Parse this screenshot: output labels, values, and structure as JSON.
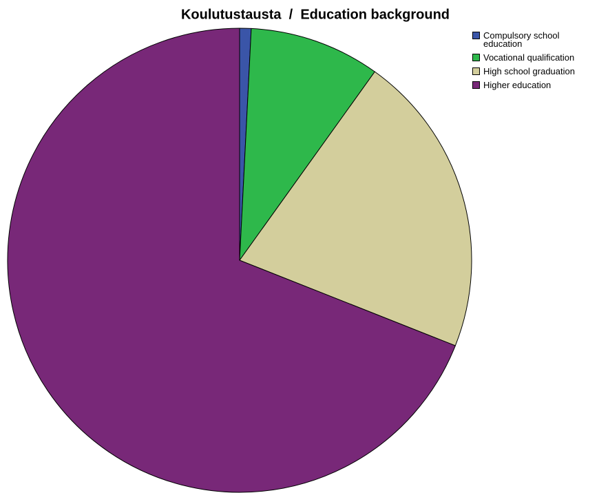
{
  "chart_data": {
    "type": "pie",
    "title": "Koulutustausta  /  Education background",
    "categories": [
      "Compulsory school\neducation",
      "Vocational qualification",
      "High school graduation",
      "Higher education"
    ],
    "values": [
      0.8,
      9.1,
      21.1,
      69.0
    ],
    "colors": [
      "#3a55a8",
      "#2eb84b",
      "#d3ce9c",
      "#782878"
    ],
    "legend": "top-right"
  }
}
